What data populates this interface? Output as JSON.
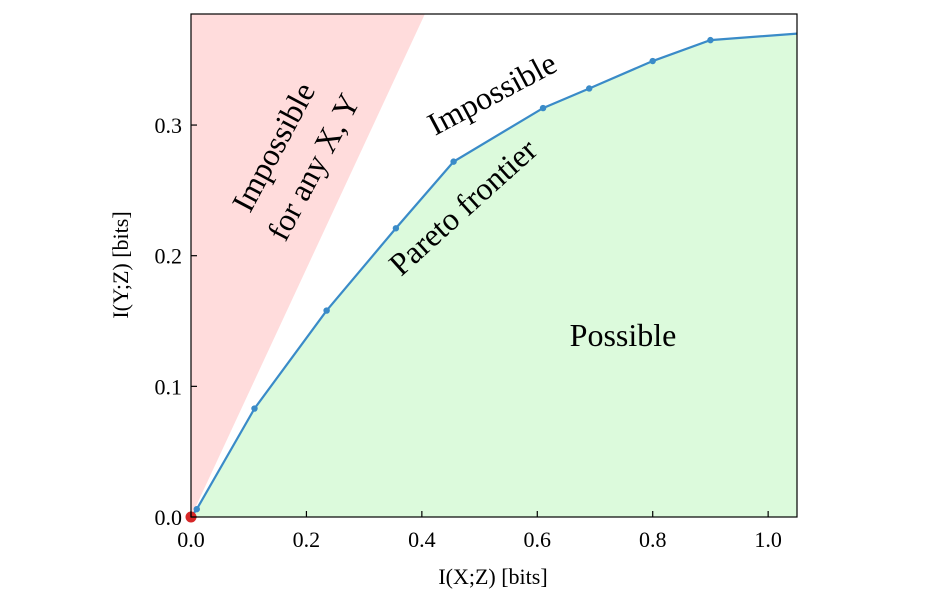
{
  "chart_data": {
    "type": "line",
    "xlabel": "I(X;Z) [bits]",
    "ylabel": "I(Y;Z) [bits]",
    "xlim": [
      0.0,
      1.05
    ],
    "ylim": [
      0.0,
      0.385
    ],
    "x_ticks": [
      "0.0",
      "0.2",
      "0.4",
      "0.6",
      "0.8",
      "1.0"
    ],
    "y_ticks": [
      "0.0",
      "0.1",
      "0.2",
      "0.3"
    ],
    "grid": false,
    "series": [
      {
        "name": "Pareto frontier",
        "color": "#3a8bc8",
        "x": [
          0.0,
          0.01,
          0.11,
          0.235,
          0.355,
          0.455,
          0.61,
          0.69,
          0.8,
          0.9,
          1.05
        ],
        "y": [
          0.0,
          0.006,
          0.083,
          0.158,
          0.221,
          0.272,
          0.313,
          0.328,
          0.349,
          0.365,
          0.37
        ]
      }
    ],
    "origin_marker_color": "#d62728",
    "regions": {
      "impossible_any_color": "#ffdcdc",
      "impossible_any_slope": 0.95,
      "possible_color": "#dcfadc"
    },
    "annotations": {
      "impossible_any_line1": "Impossible",
      "impossible_any_line2": "for any X, Y",
      "impossible": "Impossible",
      "pareto": "Pareto frontier",
      "possible": "Possible"
    }
  }
}
